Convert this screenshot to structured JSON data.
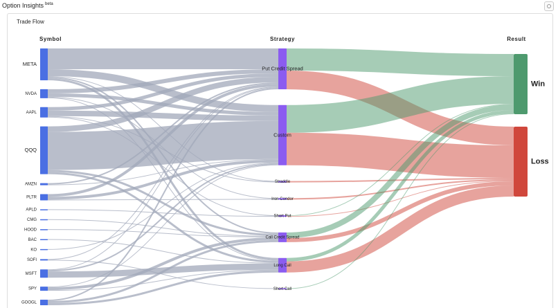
{
  "header": {
    "title": "Option Insights",
    "badge": "beta"
  },
  "chart_data": {
    "type": "sankey",
    "title": "Trade Flow",
    "columns": [
      {
        "name": "Symbol",
        "color": "#4a6fe3",
        "link_color": "#a1a8ba",
        "nodes": [
          "META",
          "NVDA",
          "AAPL",
          "QQQ",
          "AMZN",
          "PLTR",
          "APLD",
          "CMG",
          "HOOD",
          "BAC",
          "KO",
          "SOFI",
          "MSFT",
          "SPY",
          "GOOGL"
        ]
      },
      {
        "name": "Strategy",
        "color": "#8b5cf0",
        "nodes": [
          "Put Credit Spread",
          "Custom",
          "Straddle",
          "Iron Condor",
          "Short Put",
          "Call Credit Spread",
          "Long Call",
          "Short Call"
        ]
      },
      {
        "name": "Result",
        "color": [
          "#4e9a6e",
          "#d0473c"
        ],
        "nodes": [
          "Win",
          "Loss"
        ]
      }
    ],
    "links": [
      {
        "source": "META",
        "target": "Put Credit Spread",
        "value": 30
      },
      {
        "source": "META",
        "target": "Custom",
        "value": 10
      },
      {
        "source": "META",
        "target": "Straddle",
        "value": 1
      },
      {
        "source": "META",
        "target": "Long Call",
        "value": 3
      },
      {
        "source": "META",
        "target": "Call Credit Spread",
        "value": 2
      },
      {
        "source": "NVDA",
        "target": "Put Credit Spread",
        "value": 6
      },
      {
        "source": "NVDA",
        "target": "Custom",
        "value": 5
      },
      {
        "source": "NVDA",
        "target": "Iron Condor",
        "value": 1
      },
      {
        "source": "NVDA",
        "target": "Long Call",
        "value": 1
      },
      {
        "source": "AAPL",
        "target": "Put Credit Spread",
        "value": 5
      },
      {
        "source": "AAPL",
        "target": "Custom",
        "value": 8
      },
      {
        "source": "AAPL",
        "target": "Straddle",
        "value": 1
      },
      {
        "source": "AAPL",
        "target": "Short Put",
        "value": 1
      },
      {
        "source": "QQQ",
        "target": "Custom",
        "value": 55
      },
      {
        "source": "QQQ",
        "target": "Put Credit Spread",
        "value": 8
      },
      {
        "source": "QQQ",
        "target": "Long Call",
        "value": 3
      },
      {
        "source": "QQQ",
        "target": "Call Credit Spread",
        "value": 3
      },
      {
        "source": "AMZN",
        "target": "Put Credit Spread",
        "value": 2
      },
      {
        "source": "AMZN",
        "target": "Custom",
        "value": 1
      },
      {
        "source": "PLTR",
        "target": "Put Credit Spread",
        "value": 4
      },
      {
        "source": "PLTR",
        "target": "Custom",
        "value": 4
      },
      {
        "source": "PLTR",
        "target": "Iron Condor",
        "value": 1
      },
      {
        "source": "APLD",
        "target": "Short Put",
        "value": 1
      },
      {
        "source": "CMG",
        "target": "Call Credit Spread",
        "value": 1
      },
      {
        "source": "HOOD",
        "target": "Call Credit Spread",
        "value": 1
      },
      {
        "source": "BAC",
        "target": "Long Call",
        "value": 1
      },
      {
        "source": "KO",
        "target": "Custom",
        "value": 1
      },
      {
        "source": "SOFI",
        "target": "Put Credit Spread",
        "value": 1
      },
      {
        "source": "SOFI",
        "target": "Short Call",
        "value": 1
      },
      {
        "source": "MSFT",
        "target": "Long Call",
        "value": 9
      },
      {
        "source": "MSFT",
        "target": "Custom",
        "value": 2
      },
      {
        "source": "MSFT",
        "target": "Put Credit Spread",
        "value": 1
      },
      {
        "source": "SPY",
        "target": "Call Credit Spread",
        "value": 4
      },
      {
        "source": "SPY",
        "target": "Long Call",
        "value": 1
      },
      {
        "source": "SPY",
        "target": "Custom",
        "value": 1
      },
      {
        "source": "GOOGL",
        "target": "Call Credit Spread",
        "value": 3
      },
      {
        "source": "GOOGL",
        "target": "Long Call",
        "value": 3
      },
      {
        "source": "GOOGL",
        "target": "Put Credit Spread",
        "value": 2
      },
      {
        "source": "Put Credit Spread",
        "target": "Win",
        "value": 32
      },
      {
        "source": "Put Credit Spread",
        "target": "Loss",
        "value": 27
      },
      {
        "source": "Custom",
        "target": "Win",
        "value": 40
      },
      {
        "source": "Custom",
        "target": "Loss",
        "value": 47
      },
      {
        "source": "Straddle",
        "target": "Loss",
        "value": 2
      },
      {
        "source": "Iron Condor",
        "target": "Loss",
        "value": 2
      },
      {
        "source": "Short Put",
        "target": "Win",
        "value": 1
      },
      {
        "source": "Short Put",
        "target": "Loss",
        "value": 1
      },
      {
        "source": "Call Credit Spread",
        "target": "Win",
        "value": 8
      },
      {
        "source": "Call Credit Spread",
        "target": "Loss",
        "value": 6
      },
      {
        "source": "Long Call",
        "target": "Win",
        "value": 5
      },
      {
        "source": "Long Call",
        "target": "Loss",
        "value": 16
      },
      {
        "source": "Short Call",
        "target": "Win",
        "value": 1
      }
    ]
  }
}
